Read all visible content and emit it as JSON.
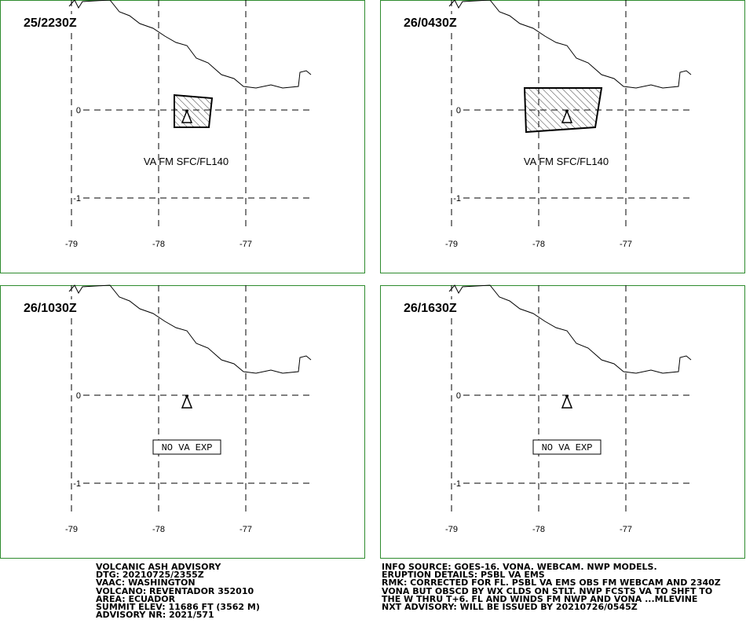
{
  "panels": [
    {
      "time": "25/2230Z",
      "annotation": "VA FM SFC/FL140"
    },
    {
      "time": "26/0430Z",
      "annotation": "VA FM SFC/FL140"
    },
    {
      "time": "26/1030Z",
      "annotation": "NO VA EXP"
    },
    {
      "time": "26/1630Z",
      "annotation": "NO VA EXP"
    }
  ],
  "lat_ticks": [
    0,
    -1
  ],
  "lon_ticks": [
    -79,
    -78,
    -77
  ],
  "advisory": {
    "lines": [
      "VOLCANIC ASH ADVISORY",
      "DTG: 20210725/2355Z",
      "VAAC: WASHINGTON",
      "VOLCANO: REVENTADOR 352010",
      "AREA: ECUADOR",
      "SUMMIT ELEV: 11686 FT (3562 M)",
      "ADVISORY NR: 2021/571"
    ]
  },
  "info": {
    "lines": [
      "INFO SOURCE: GOES-16. VONA. WEBCAM. NWP MODELS.",
      "ERUPTION DETAILS: PSBL VA EMS",
      "RMK: CORRECTED FOR FL. PSBL VA EMS OBS FM WEBCAM AND 2340Z",
      "VONA BUT OBSCD BY WX CLDS ON STLT. NWP FCSTS VA TO SHFT TO",
      "THE W THRU T+6. FL AND WINDS FM NWP AND VONA ...MLEVINE",
      "NXT ADVISORY: WILL BE ISSUED BY 20210726/0545Z"
    ]
  }
}
